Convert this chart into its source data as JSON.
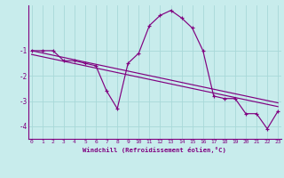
{
  "xlabel": "Windchill (Refroidissement éolien,°C)",
  "bg_color": "#c8ecec",
  "line_color": "#800080",
  "grid_color": "#a8d8d8",
  "x_values": [
    0,
    1,
    2,
    3,
    4,
    5,
    6,
    7,
    8,
    9,
    10,
    11,
    12,
    13,
    14,
    15,
    16,
    17,
    18,
    19,
    20,
    21,
    22,
    23
  ],
  "series1": [
    -1.0,
    -1.0,
    -1.0,
    -1.4,
    -1.4,
    -1.5,
    -1.6,
    -2.6,
    -3.3,
    -1.5,
    -1.1,
    0.0,
    0.4,
    0.6,
    0.3,
    -0.1,
    -1.0,
    -2.8,
    -2.9,
    -2.9,
    -3.5,
    -3.5,
    -4.1,
    -3.4
  ],
  "trend1": [
    -1.0,
    -1.09,
    -1.18,
    -1.27,
    -1.36,
    -1.45,
    -1.54,
    -1.63,
    -1.72,
    -1.81,
    -1.9,
    -1.99,
    -2.08,
    -2.17,
    -2.26,
    -2.35,
    -2.44,
    -2.53,
    -2.62,
    -2.71,
    -2.8,
    -2.89,
    -2.98,
    -3.07
  ],
  "trend2": [
    -1.15,
    -1.24,
    -1.33,
    -1.42,
    -1.51,
    -1.6,
    -1.69,
    -1.78,
    -1.87,
    -1.96,
    -2.05,
    -2.14,
    -2.23,
    -2.32,
    -2.41,
    -2.5,
    -2.59,
    -2.68,
    -2.77,
    -2.86,
    -2.95,
    -3.04,
    -3.13,
    -3.22
  ],
  "ylim": [
    -4.5,
    0.8
  ],
  "yticks": [
    -4,
    -3,
    -2,
    -1
  ],
  "xticks": [
    0,
    1,
    2,
    3,
    4,
    5,
    6,
    7,
    8,
    9,
    10,
    11,
    12,
    13,
    14,
    15,
    16,
    17,
    18,
    19,
    20,
    21,
    22,
    23
  ]
}
